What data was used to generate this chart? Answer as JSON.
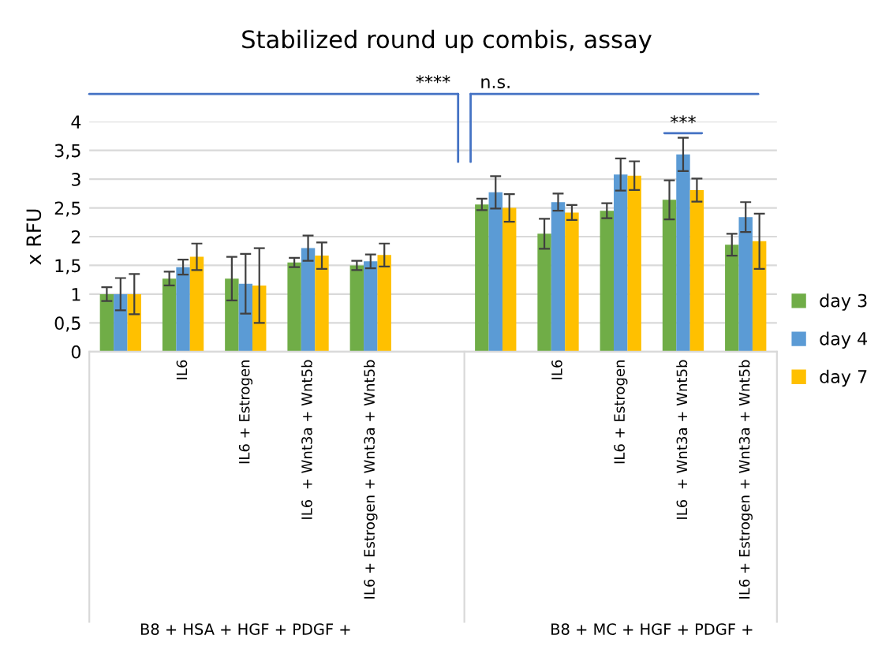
{
  "chart_data": {
    "type": "bar",
    "title": "Stabilized round up combis, assay",
    "ylabel": "x RFU",
    "categories": [
      null,
      "IL6",
      "IL6 + Estrogen",
      "IL6  + Wnt3a + Wnt5b",
      "IL6 + Estrogen + Wnt3a + Wnt5b",
      null,
      null,
      "IL6",
      "IL6 + Estrogen",
      "IL6  + Wnt3a + Wnt5b",
      "IL6 + Estrogen + Wnt3a + Wnt5b"
    ],
    "series": [
      {
        "name": "day 3",
        "color": "#70ad47",
        "values": [
          1.0,
          1.27,
          1.27,
          1.55,
          1.5,
          null,
          2.56,
          2.05,
          2.45,
          2.64,
          1.86
        ],
        "errors": [
          0.12,
          0.12,
          0.38,
          0.08,
          0.08,
          null,
          0.1,
          0.26,
          0.13,
          0.34,
          0.19
        ]
      },
      {
        "name": "day 4",
        "color": "#5b9bd5",
        "values": [
          1.0,
          1.47,
          1.18,
          1.8,
          1.57,
          null,
          2.77,
          2.6,
          3.08,
          3.43,
          2.34
        ],
        "errors": [
          0.28,
          0.13,
          0.52,
          0.22,
          0.12,
          null,
          0.28,
          0.15,
          0.28,
          0.29,
          0.26
        ]
      },
      {
        "name": "day 7",
        "color": "#ffc000",
        "values": [
          1.0,
          1.65,
          1.15,
          1.67,
          1.68,
          null,
          2.5,
          2.42,
          3.06,
          2.81,
          1.92
        ],
        "errors": [
          0.35,
          0.23,
          0.65,
          0.23,
          0.2,
          null,
          0.24,
          0.13,
          0.25,
          0.2,
          0.48
        ]
      }
    ],
    "ylim": [
      0,
      4
    ],
    "yticks": [
      0,
      {
        "value": 0.5,
        "label": "0,5"
      },
      1,
      {
        "value": 1.5,
        "label": "1,5"
      },
      2,
      {
        "value": 2.5,
        "label": "2,5"
      },
      3,
      {
        "value": 3.5,
        "label": "3,5"
      },
      4
    ],
    "grid": "y",
    "legend": "right",
    "annotations": [
      "****",
      "n.s.",
      "***",
      "B8 + HSA + HGF + PDGF +",
      "B8 + MC + HGF + PDGF +"
    ]
  }
}
